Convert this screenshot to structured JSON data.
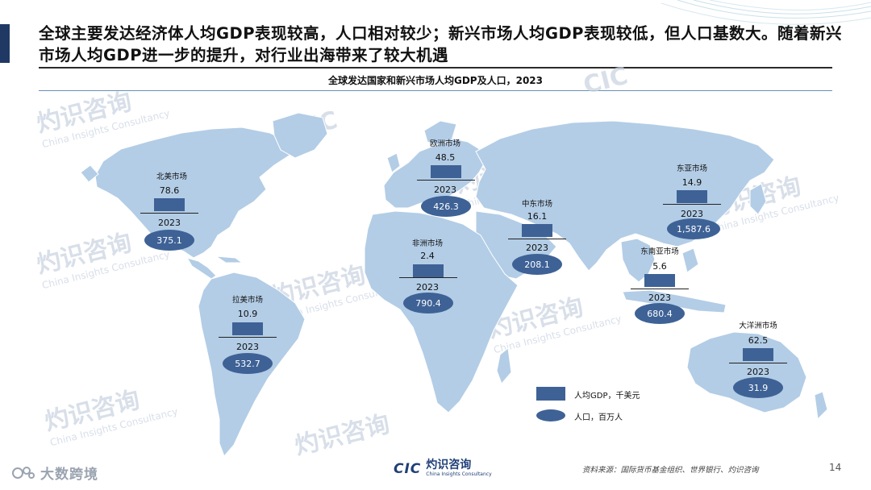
{
  "header": {
    "headline": "全球主要发达经济体人均GDP表现较高，人口相对较少；新兴市场人均GDP表现较低，但人口基数大。随着新兴市场人均GDP进一步的提升，对行业出海带来了较大机遇",
    "subtitle": "全球发达国家和新兴市场人均GDP及人口，2023"
  },
  "markets": [
    {
      "region": "北美市场",
      "gdp": "78.6",
      "year": "2023",
      "population": "375.1"
    },
    {
      "region": "欧洲市场",
      "gdp": "48.5",
      "year": "2023",
      "population": "426.3"
    },
    {
      "region": "中东市场",
      "gdp": "16.1",
      "year": "2023",
      "population": "208.1"
    },
    {
      "region": "东亚市场",
      "gdp": "14.9",
      "year": "2023",
      "population": "1,587.6"
    },
    {
      "region": "非洲市场",
      "gdp": "2.4",
      "year": "2023",
      "population": "790.4"
    },
    {
      "region": "东南亚市场",
      "gdp": "5.6",
      "year": "2023",
      "population": "680.4"
    },
    {
      "region": "拉美市场",
      "gdp": "10.9",
      "year": "2023",
      "population": "532.7"
    },
    {
      "region": "大洋洲市场",
      "gdp": "62.5",
      "year": "2023",
      "population": "31.9"
    }
  ],
  "legend": {
    "gdp": "人均GDP，千美元",
    "population": "人口，百万人"
  },
  "footer": {
    "source": "资料来源：国际货币基金组织、世界银行、灼识咨询",
    "page": "14",
    "logo_mark": "CIC",
    "logo_cn": "灼识咨询",
    "logo_en": "China Insights Consultancy",
    "brand": "大数跨境"
  },
  "watermark": {
    "cn": "灼识咨询",
    "en": "China Insights Consultancy",
    "mark": "CIC"
  },
  "colors": {
    "land": "#b3cde6",
    "accent": "#3e6296",
    "title_bar": "#203864"
  }
}
